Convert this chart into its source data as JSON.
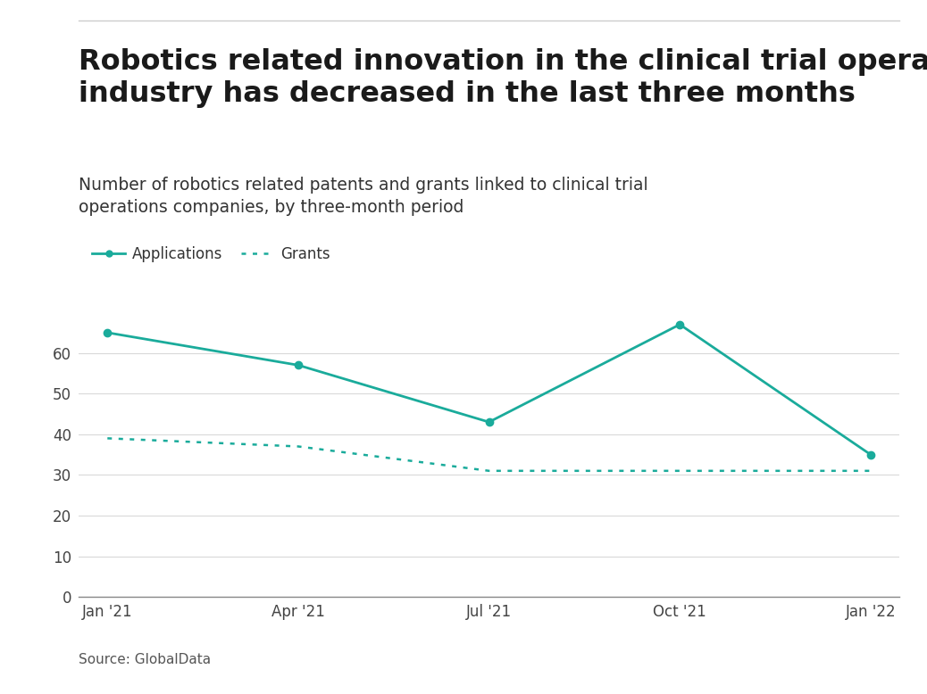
{
  "title_line1": "Robotics related innovation in the clinical trial operations",
  "title_line2": "industry has decreased in the last three months",
  "subtitle": "Number of robotics related patents and grants linked to clinical trial\noperations companies, by three-month period",
  "source": "Source: GlobalData",
  "x_labels": [
    "Jan '21",
    "Apr '21",
    "Jul '21",
    "Oct '21",
    "Jan '22"
  ],
  "applications": [
    65,
    57,
    43,
    67,
    35
  ],
  "grants": [
    39,
    37,
    31,
    31,
    31
  ],
  "line_color": "#1aab9b",
  "ylim": [
    0,
    70
  ],
  "yticks": [
    0,
    10,
    20,
    30,
    40,
    50,
    60
  ],
  "background_color": "#ffffff",
  "title_fontsize": 23,
  "subtitle_fontsize": 13.5,
  "legend_label_applications": "Applications",
  "legend_label_grants": "Grants",
  "source_fontsize": 11,
  "tick_fontsize": 12,
  "top_line_color": "#cccccc",
  "grid_color": "#d9d9d9",
  "text_color": "#1a1a1a",
  "subtitle_color": "#333333",
  "source_color": "#555555"
}
